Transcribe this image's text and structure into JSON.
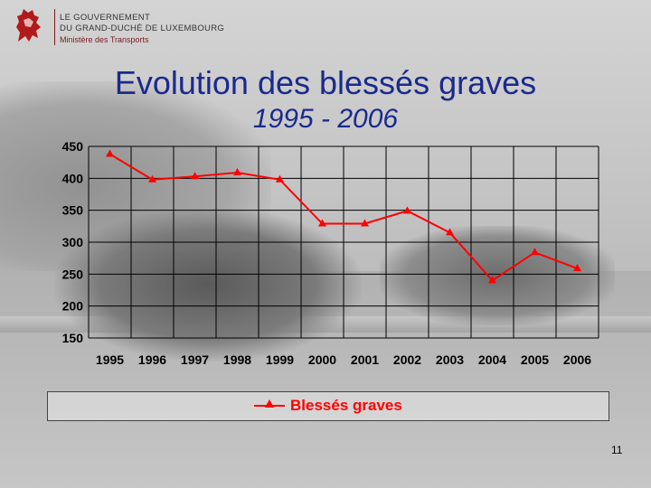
{
  "header": {
    "gov_line1": "LE GOUVERNEMENT",
    "gov_line2": "DU GRAND-DUCHÉ DE LUXEMBOURG",
    "ministry": "Ministère des Transports"
  },
  "slide": {
    "title": "Evolution des blessés graves",
    "subtitle": "1995 - 2006",
    "page_number": "11"
  },
  "colors": {
    "title": "#1a2a8c",
    "series": "#ff0000",
    "grid": "#000000",
    "brand": "#7a1a1a"
  },
  "chart_data": {
    "type": "line",
    "categories": [
      "1995",
      "1996",
      "1997",
      "1998",
      "1999",
      "2000",
      "2001",
      "2002",
      "2003",
      "2004",
      "2005",
      "2006"
    ],
    "series": [
      {
        "name": "Blessés graves",
        "marker": "triangle",
        "values": [
          438,
          398,
          403,
          409,
          398,
          329,
          329,
          349,
          315,
          240,
          284,
          259
        ]
      }
    ],
    "y_ticks": [
      "450",
      "400",
      "350",
      "300",
      "250",
      "200",
      "150"
    ],
    "ylim": [
      150,
      450
    ],
    "grid": true,
    "legend_position": "bottom"
  }
}
